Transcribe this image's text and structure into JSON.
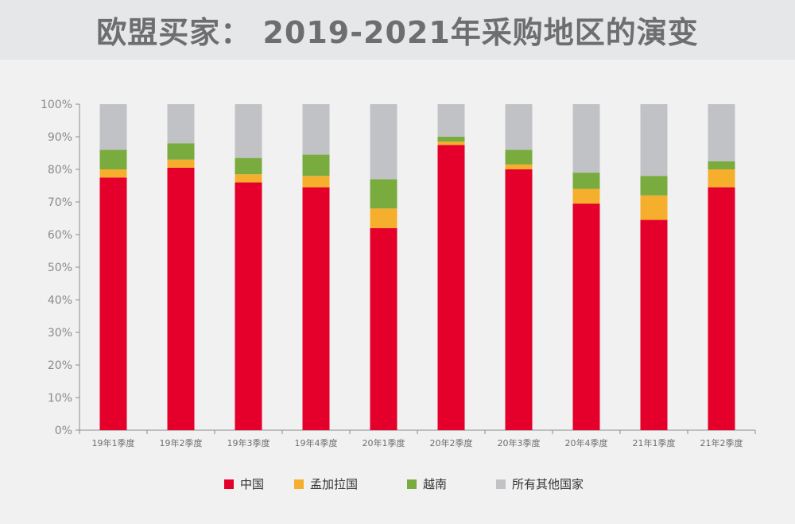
{
  "title": "欧盟买家：  2019-2021年采购地区的演变",
  "colors": {
    "china": "#e4002b",
    "bangladesh": "#f6ae2d",
    "vietnam": "#7aab3e",
    "others": "#c1c2c6",
    "background": "#f1f1f1",
    "title_bar": "#e6e7e8"
  },
  "chart_data": {
    "type": "bar",
    "stacked": true,
    "categories": [
      "19年1季度",
      "19年2季度",
      "19年3季度",
      "19年4季度",
      "20年1季度",
      "20年2季度",
      "20年3季度",
      "20年4季度",
      "21年1季度",
      "21年2季度"
    ],
    "series": [
      {
        "name": "中国",
        "color": "#e4002b",
        "values": [
          77.5,
          80.5,
          76.0,
          74.5,
          62.0,
          87.5,
          80.0,
          69.5,
          64.5,
          74.5
        ]
      },
      {
        "name": "孟加拉国",
        "color": "#f6ae2d",
        "values": [
          2.5,
          2.5,
          2.5,
          3.5,
          6.0,
          1.0,
          1.5,
          4.5,
          7.5,
          5.5
        ]
      },
      {
        "name": "越南",
        "color": "#7aab3e",
        "values": [
          6.0,
          5.0,
          5.0,
          6.5,
          9.0,
          1.5,
          4.5,
          5.0,
          6.0,
          2.5
        ]
      },
      {
        "name": "所有其他国家",
        "color": "#c1c2c6",
        "values": [
          14.0,
          12.0,
          16.5,
          15.5,
          23.0,
          10.0,
          14.0,
          21.0,
          22.0,
          17.5
        ]
      }
    ],
    "y_ticks": [
      "0%",
      "10%",
      "20%",
      "30%",
      "40%",
      "50%",
      "60%",
      "70%",
      "80%",
      "90%",
      "100%"
    ],
    "ylim": [
      0,
      100
    ],
    "grid": false,
    "legend_position": "bottom"
  },
  "legend": [
    {
      "label": "中国",
      "color": "#e4002b"
    },
    {
      "label": "孟加拉国",
      "color": "#f6ae2d"
    },
    {
      "label": "越南",
      "color": "#7aab3e"
    },
    {
      "label": "所有其他国家",
      "color": "#c1c2c6"
    }
  ]
}
